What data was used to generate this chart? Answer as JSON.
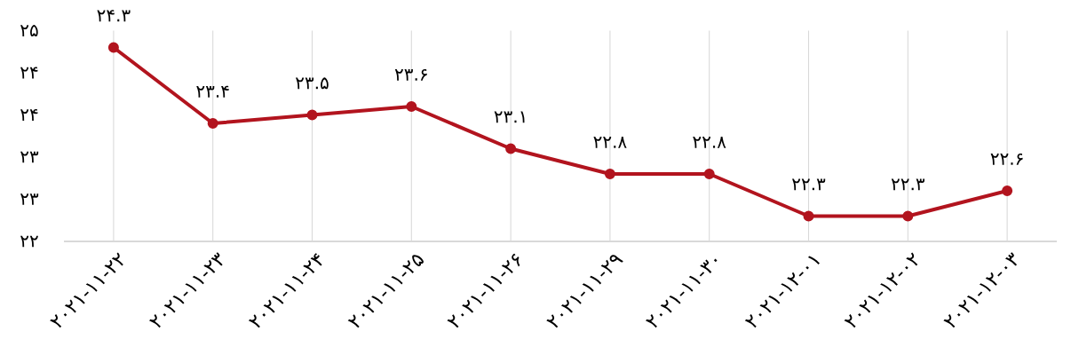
{
  "chart_data": {
    "type": "line",
    "categories": [
      "۲۰۲۱-۱۱-۲۲",
      "۲۰۲۱-۱۱-۲۳",
      "۲۰۲۱-۱۱-۲۴",
      "۲۰۲۱-۱۱-۲۵",
      "۲۰۲۱-۱۱-۲۶",
      "۲۰۲۱-۱۱-۲۹",
      "۲۰۲۱-۱۱-۳۰",
      "۲۰۲۱-۱۲-۰۱",
      "۲۰۲۱-۱۲-۰۲",
      "۲۰۲۱-۱۲-۰۳"
    ],
    "values": [
      24.3,
      23.4,
      23.5,
      23.6,
      23.1,
      22.8,
      22.8,
      22.3,
      22.3,
      22.6
    ],
    "value_labels": [
      "۲۴.۳",
      "۲۳.۴",
      "۲۳.۵",
      "۲۳.۶",
      "۲۳.۱",
      "۲۲.۸",
      "۲۲.۸",
      "۲۲.۳",
      "۲۲.۳",
      "۲۲.۶"
    ],
    "color": "#b2141e",
    "ylim": [
      22,
      24.5
    ],
    "yticks": [
      {
        "value": 22,
        "label": "۲۲"
      },
      {
        "value": 22.5,
        "label": "۲۳"
      },
      {
        "value": 23,
        "label": "۲۳"
      },
      {
        "value": 23.5,
        "label": "۲۴"
      },
      {
        "value": 24,
        "label": "۲۴"
      },
      {
        "value": 24.5,
        "label": "۲۵"
      }
    ],
    "grid": "x",
    "marker": "circle",
    "line_style": "solid"
  }
}
